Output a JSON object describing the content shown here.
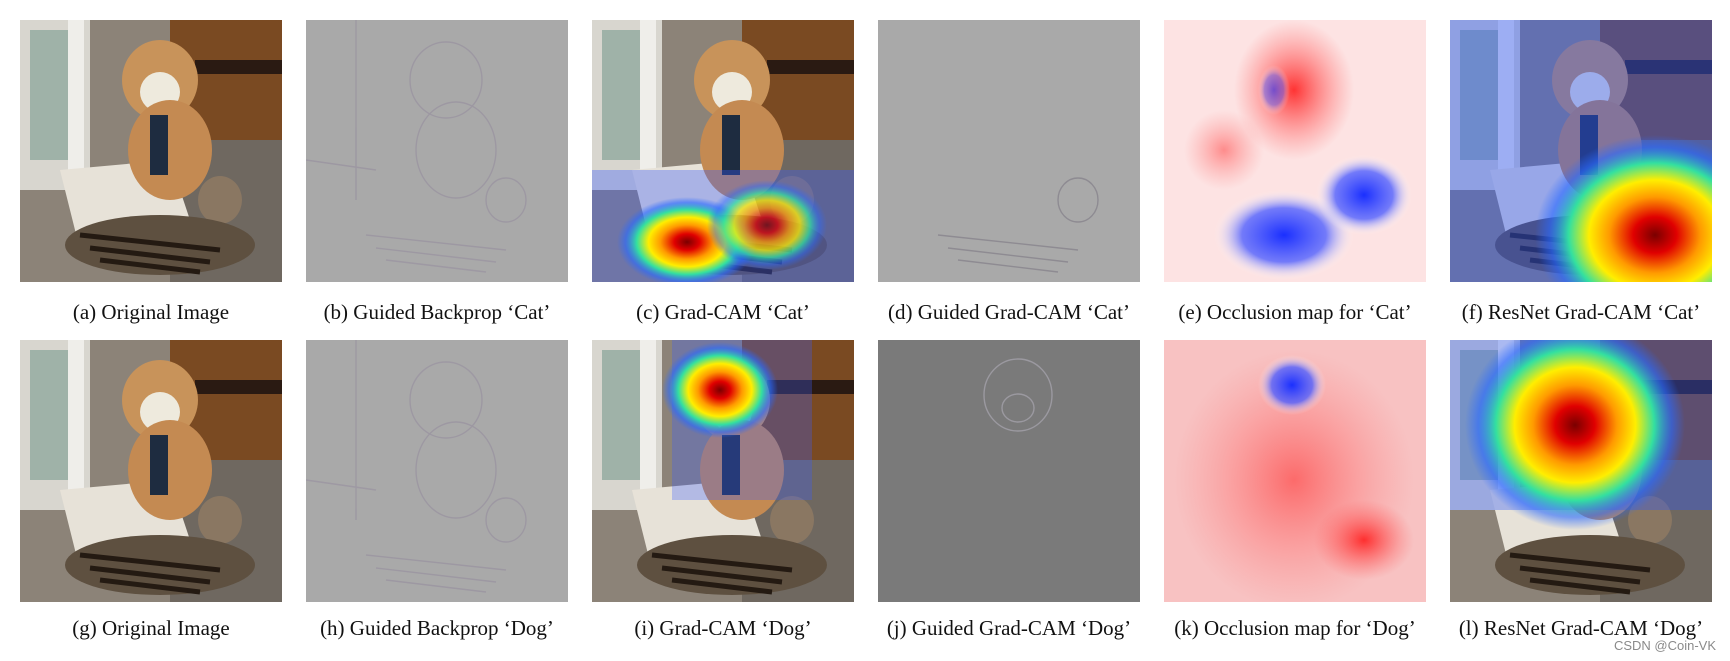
{
  "figure": {
    "row1": {
      "a": "(a) Original Image",
      "b": "(b) Guided Backprop ‘Cat’",
      "c": "(c) Grad-CAM ‘Cat’",
      "d": "(d) Guided Grad-CAM ‘Cat’",
      "e": "(e) Occlusion map for ‘Cat’",
      "f": "(f) ResNet Grad-CAM ‘Cat’"
    },
    "row2": {
      "g": "(g) Original Image",
      "h": "(h) Guided Backprop ‘Dog’",
      "i": "(i) Grad-CAM ‘Dog’",
      "j": "(j) Guided Grad-CAM ‘Dog’",
      "k": "(k) Occlusion map for ‘Dog’",
      "l": "(l) ResNet Grad-CAM ‘Dog’"
    }
  },
  "watermark": "CSDN @Coin-VK"
}
